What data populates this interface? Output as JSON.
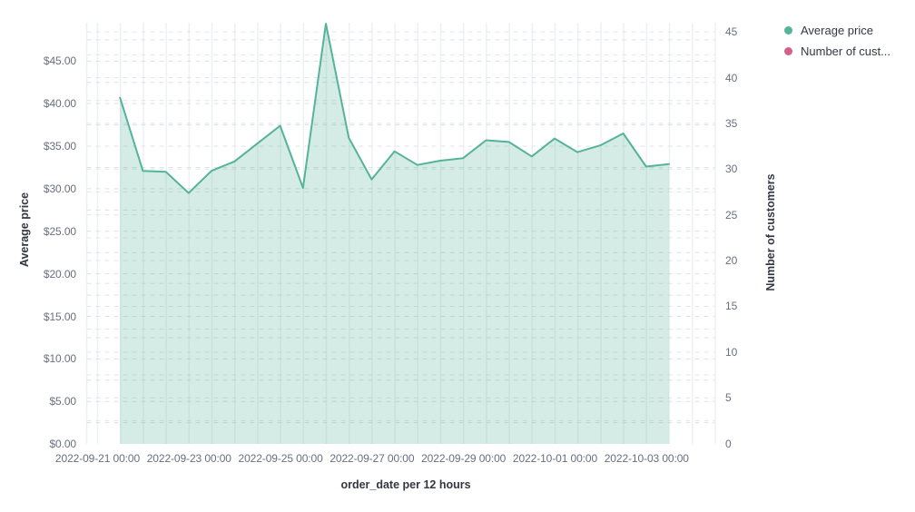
{
  "chart_data": {
    "type": "area",
    "x_label": "order_date per 12 hours",
    "x_tick_labels": [
      "2022-09-21 00:00",
      "2022-09-23 00:00",
      "2022-09-25 00:00",
      "2022-09-27 00:00",
      "2022-09-29 00:00",
      "2022-10-01 00:00",
      "2022-10-03 00:00"
    ],
    "y_left": {
      "label": "Average price",
      "tick_labels": [
        "$0.00",
        "$5.00",
        "$10.00",
        "$15.00",
        "$20.00",
        "$25.00",
        "$30.00",
        "$35.00",
        "$40.00",
        "$45.00"
      ],
      "range": [
        0,
        49.5
      ]
    },
    "y_right": {
      "label": "Number of customers",
      "tick_labels": [
        "0",
        "5",
        "10",
        "15",
        "20",
        "25",
        "30",
        "35",
        "40",
        "45"
      ],
      "range": [
        0,
        46
      ]
    },
    "grid": {
      "vertical": "solid",
      "horizontal": "dashed"
    },
    "legend_position": "top-right",
    "x": [
      "2022-09-21 12:00",
      "2022-09-22 00:00",
      "2022-09-22 12:00",
      "2022-09-23 00:00",
      "2022-09-23 12:00",
      "2022-09-24 00:00",
      "2022-09-24 12:00",
      "2022-09-25 00:00",
      "2022-09-25 12:00",
      "2022-09-26 00:00",
      "2022-09-26 12:00",
      "2022-09-27 00:00",
      "2022-09-27 12:00",
      "2022-09-28 00:00",
      "2022-09-28 12:00",
      "2022-09-29 00:00",
      "2022-09-29 12:00",
      "2022-09-30 00:00",
      "2022-09-30 12:00",
      "2022-10-01 00:00",
      "2022-10-01 12:00",
      "2022-10-02 00:00",
      "2022-10-02 12:00",
      "2022-10-03 00:00",
      "2022-10-03 12:00"
    ],
    "series": [
      {
        "name": "Average price",
        "type": "area",
        "axis": "left",
        "line_color": "#54B399",
        "fill_color": "rgba(84,179,153,0.25)",
        "values": [
          40.7,
          32.1,
          32.0,
          29.5,
          32.1,
          33.2,
          35.3,
          37.4,
          30.1,
          49.4,
          36.0,
          31.1,
          34.4,
          32.8,
          33.3,
          33.6,
          35.7,
          35.5,
          33.8,
          35.9,
          34.3,
          35.1,
          36.5,
          32.6,
          32.9
        ]
      },
      {
        "name": "Number of cust...",
        "type": "line",
        "axis": "right",
        "line_color": "#D36086",
        "values": []
      }
    ]
  },
  "legend": {
    "items": [
      {
        "label": "Average price",
        "color": "#54B399"
      },
      {
        "label": "Number of cust...",
        "color": "#D36086"
      }
    ]
  }
}
